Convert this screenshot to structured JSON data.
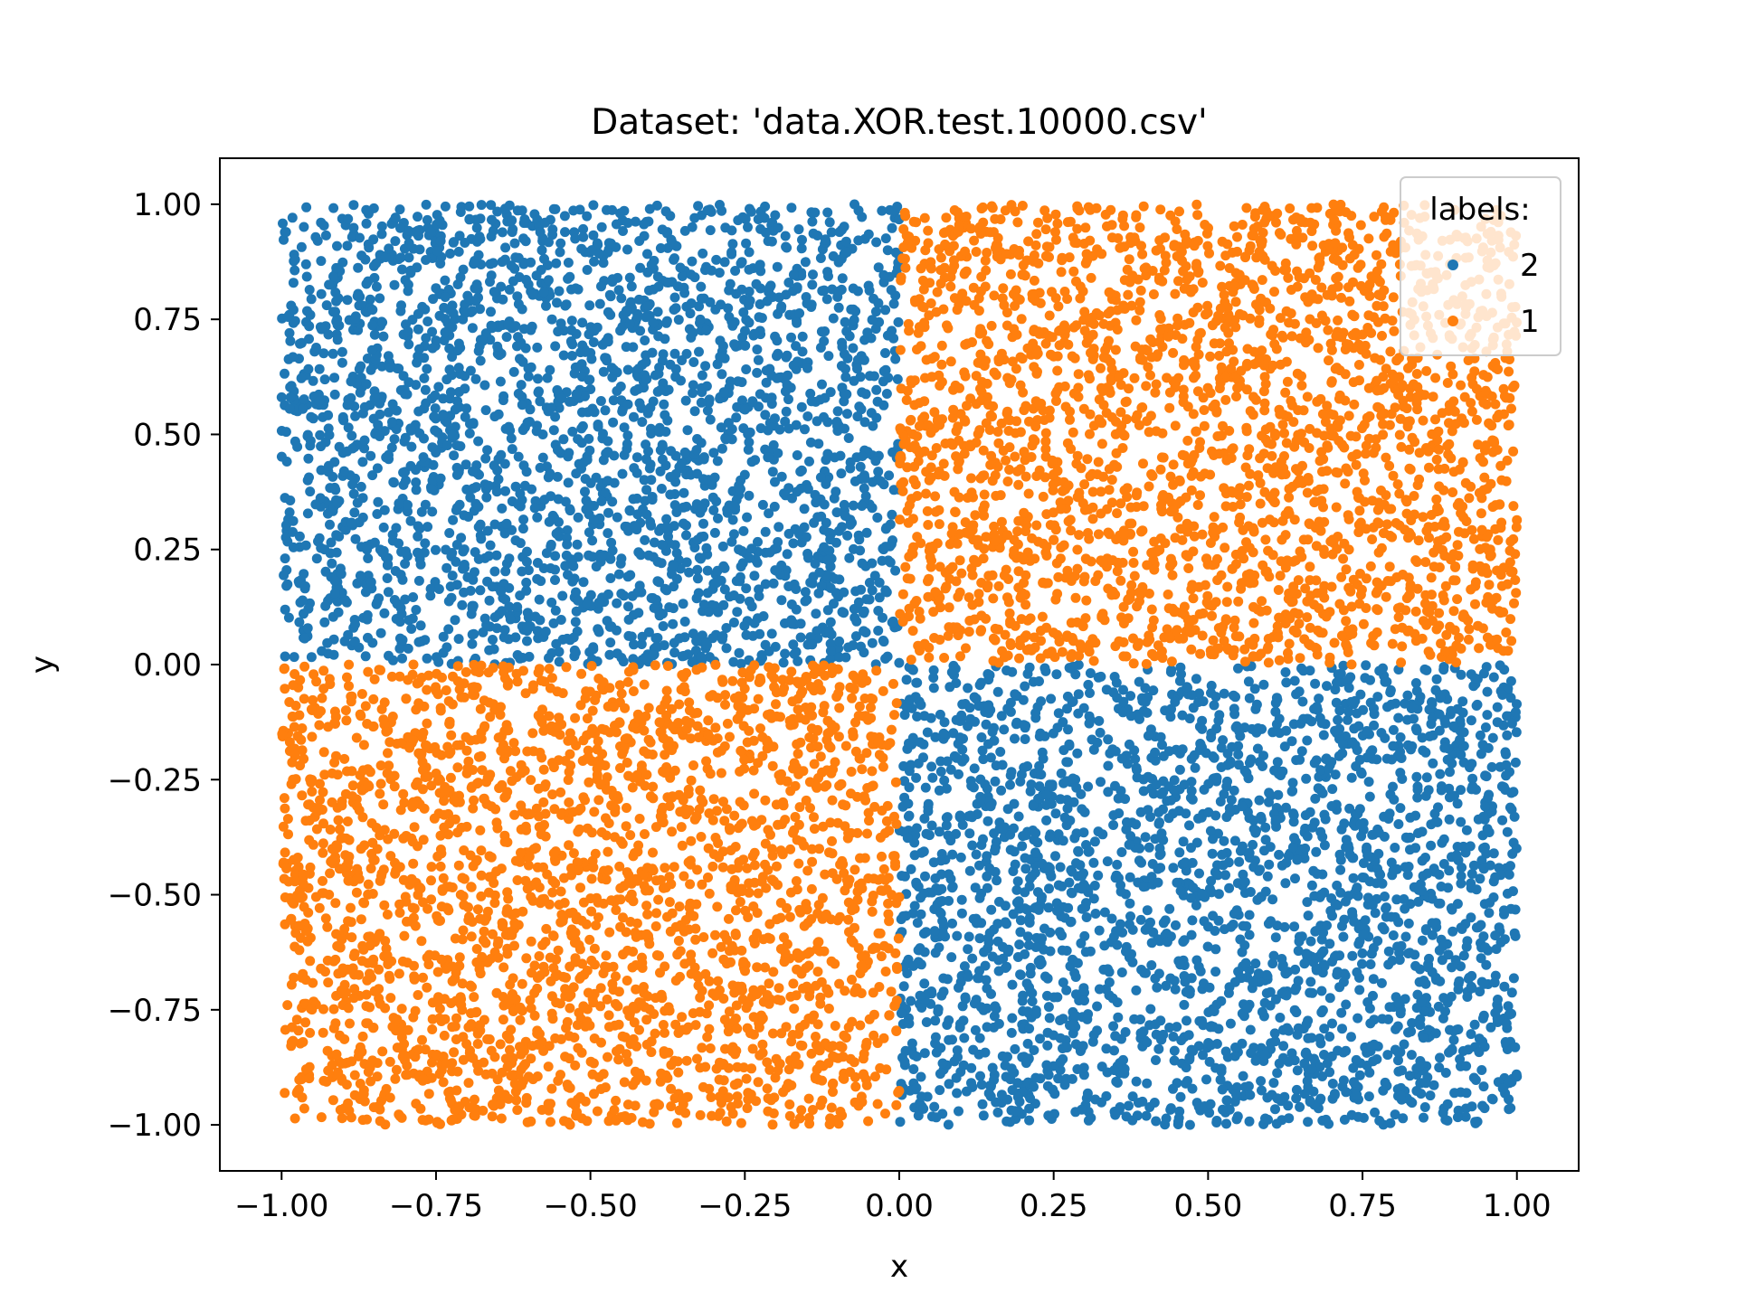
{
  "chart_data": {
    "type": "scatter",
    "title": "Dataset: 'data.XOR.test.10000.csv'",
    "xlabel": "x",
    "ylabel": "y",
    "xlim": [
      -1.1,
      1.1
    ],
    "ylim": [
      -1.1,
      1.1
    ],
    "xticks": [
      -1.0,
      -0.75,
      -0.5,
      -0.25,
      0.0,
      0.25,
      0.5,
      0.75,
      1.0
    ],
    "yticks": [
      -1.0,
      -0.75,
      -0.5,
      -0.25,
      0.0,
      0.25,
      0.5,
      0.75,
      1.0
    ],
    "xtick_labels": [
      "−1.00",
      "−0.75",
      "−0.50",
      "−0.25",
      "0.00",
      "0.25",
      "0.50",
      "0.75",
      "1.00"
    ],
    "ytick_labels": [
      "−1.00",
      "−0.75",
      "−0.50",
      "−0.25",
      "0.00",
      "0.25",
      "0.50",
      "0.75",
      "1.00"
    ],
    "grid": false,
    "legend": {
      "title": "labels:",
      "position": "top-right",
      "entries": [
        {
          "label": "2",
          "color": "#1f77b4"
        },
        {
          "label": "1",
          "color": "#ff7f0e"
        }
      ]
    },
    "series": [
      {
        "name": "2",
        "color": "#1f77b4",
        "n_points_approx": 5000,
        "regions": [
          {
            "x": [
              -1.0,
              0.0
            ],
            "y": [
              0.0,
              1.0
            ]
          },
          {
            "x": [
              0.0,
              1.0
            ],
            "y": [
              -1.0,
              0.0
            ]
          }
        ]
      },
      {
        "name": "1",
        "color": "#ff7f0e",
        "n_points_approx": 5000,
        "regions": [
          {
            "x": [
              0.0,
              1.0
            ],
            "y": [
              0.0,
              1.0
            ]
          },
          {
            "x": [
              -1.0,
              0.0
            ],
            "y": [
              -1.0,
              0.0
            ]
          }
        ]
      }
    ]
  }
}
